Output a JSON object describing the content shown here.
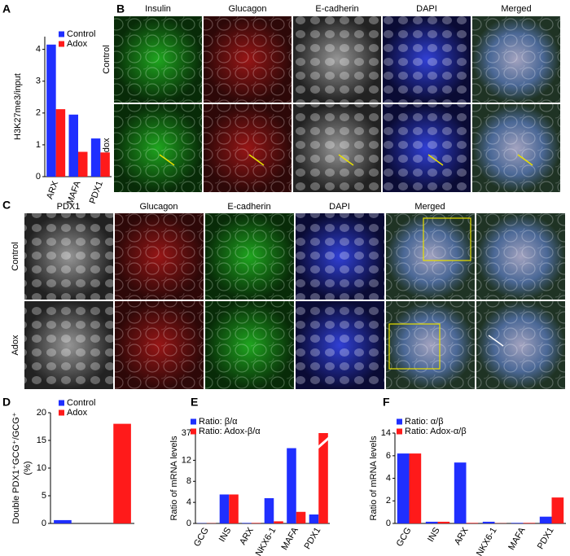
{
  "panel_labels": [
    "A",
    "B",
    "C",
    "D",
    "E",
    "F"
  ],
  "figure_b": {
    "columns": [
      "Insulin",
      "Glucagon",
      "E-cadherin",
      "DAPI",
      "Merged"
    ],
    "rows": [
      "Control",
      "Adox"
    ]
  },
  "figure_c": {
    "columns": [
      "PDX1",
      "Glucagon",
      "E-cadherin",
      "DAPI",
      "Merged"
    ],
    "rows": [
      "Control",
      "Adox"
    ]
  },
  "chart_data": [
    {
      "type": "bar",
      "y_label": "H3K27me3/input",
      "categories": [
        "ARX",
        "MAFA",
        "PDX1"
      ],
      "series": [
        {
          "name": "Control",
          "color": "#1f2fff",
          "values": [
            4.15,
            1.95,
            1.2
          ]
        },
        {
          "name": "Adox",
          "color": "#ff1a1a",
          "values": [
            2.12,
            0.78,
            0.76
          ]
        }
      ],
      "ylim": [
        0,
        4.4
      ],
      "yticks": [
        0,
        1,
        2,
        3,
        4
      ]
    },
    {
      "type": "bar",
      "y_label": [
        "Double PDX1⁺GCG⁺/GCG⁺",
        "(%)"
      ],
      "categories": [
        null,
        null
      ],
      "series": [
        {
          "name": "Control",
          "color": "#1f2fff",
          "values": [
            0.6,
            null
          ]
        },
        {
          "name": "Adox",
          "color": "#ff1a1a",
          "values": [
            null,
            18
          ]
        }
      ],
      "ylim": [
        0,
        20
      ],
      "yticks": [
        0,
        5,
        10,
        15,
        20
      ]
    },
    {
      "type": "bar",
      "y_label": "Ratio of mRNA levels",
      "categories": [
        "GCG",
        "INS",
        "ARX",
        "NKX6-1",
        "MAFA",
        "PDX1"
      ],
      "series": [
        {
          "name": "Ratio: β/α",
          "color": "#1f2fff",
          "values": [
            0.05,
            5.5,
            0.1,
            4.8,
            14.3,
            1.7
          ]
        },
        {
          "name": "Ratio: Adox-β/α",
          "color": "#ff1a1a",
          "values": [
            0.05,
            5.5,
            0.1,
            0.4,
            2.2,
            37
          ]
        }
      ],
      "ylim": [
        0,
        37
      ],
      "axis_break": [
        15,
        36
      ],
      "yticks": [
        0,
        4,
        8,
        12,
        37
      ]
    },
    {
      "type": "bar",
      "y_label": "Ratio of mRNA levels",
      "categories": [
        "GCG",
        "INS",
        "ARX",
        "NKX6-1",
        "MAFA",
        "PDX1"
      ],
      "series": [
        {
          "name": "Ratio: α/β",
          "color": "#1f2fff",
          "values": [
            6.2,
            0.15,
            5.4,
            0.15,
            0.05,
            0.6
          ]
        },
        {
          "name": "Ratio: Adox-α/β",
          "color": "#ff1a1a",
          "values": [
            6.2,
            0.15,
            0.05,
            0.02,
            0.05,
            2.3
          ]
        }
      ],
      "ylim": [
        0,
        14
      ],
      "axis_break": [
        7,
        13
      ],
      "yticks": [
        0,
        2,
        4,
        6,
        14
      ]
    }
  ]
}
